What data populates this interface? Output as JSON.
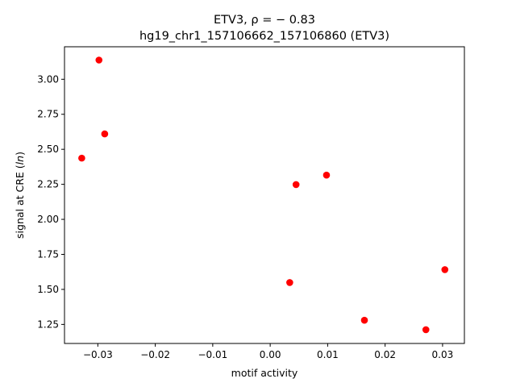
{
  "chart_data": {
    "type": "scatter",
    "title_line1": "ETV3, ρ = − 0.83",
    "title_line2": "hg19_chr1_157106662_157106860 (ETV3)",
    "xlabel": "motif activity",
    "ylabel_prefix": "signal at CRE (",
    "ylabel_italic": "ln",
    "ylabel_suffix": ")",
    "xlim": [
      -0.0358,
      0.0338
    ],
    "ylim": [
      1.114,
      3.232
    ],
    "x_ticks": [
      -0.03,
      -0.02,
      -0.01,
      0.0,
      0.01,
      0.02,
      0.03
    ],
    "x_tick_labels": [
      "−0.03",
      "−0.02",
      "−0.01",
      "0.00",
      "0.01",
      "0.02",
      "0.03"
    ],
    "y_ticks": [
      1.25,
      1.5,
      1.75,
      2.0,
      2.25,
      2.5,
      2.75,
      3.0
    ],
    "y_tick_labels": [
      "1.25",
      "1.50",
      "1.75",
      "2.00",
      "2.25",
      "2.50",
      "2.75",
      "3.00"
    ],
    "marker_color": "#ff0000",
    "grid": false,
    "points": [
      {
        "x": -0.0298,
        "y": 3.137
      },
      {
        "x": -0.0288,
        "y": 2.61
      },
      {
        "x": -0.0328,
        "y": 2.437
      },
      {
        "x": 0.0045,
        "y": 2.248
      },
      {
        "x": 0.0098,
        "y": 2.316
      },
      {
        "x": 0.0034,
        "y": 1.549
      },
      {
        "x": 0.0304,
        "y": 1.641
      },
      {
        "x": 0.0164,
        "y": 1.28
      },
      {
        "x": 0.0271,
        "y": 1.212
      }
    ]
  }
}
